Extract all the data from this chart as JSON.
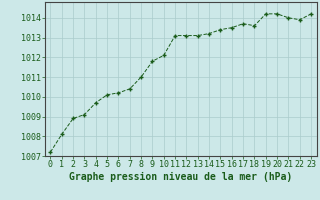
{
  "x": [
    0,
    1,
    2,
    3,
    4,
    5,
    6,
    7,
    8,
    9,
    10,
    11,
    12,
    13,
    14,
    15,
    16,
    17,
    18,
    19,
    20,
    21,
    22,
    23
  ],
  "y": [
    1007.2,
    1008.1,
    1008.9,
    1009.1,
    1009.7,
    1010.1,
    1010.2,
    1010.4,
    1011.0,
    1011.8,
    1012.1,
    1013.1,
    1013.1,
    1013.1,
    1013.2,
    1013.4,
    1013.5,
    1013.7,
    1013.6,
    1014.2,
    1014.2,
    1014.0,
    1013.9,
    1014.2
  ],
  "line_color": "#1a5c1a",
  "marker_color": "#1a5c1a",
  "bg_color": "#cce8e8",
  "grid_color": "#aacccc",
  "xlabel": "Graphe pression niveau de la mer (hPa)",
  "ylim_min": 1007,
  "ylim_max": 1014.8,
  "yticks": [
    1007,
    1008,
    1009,
    1010,
    1011,
    1012,
    1013,
    1014
  ],
  "xticks": [
    0,
    1,
    2,
    3,
    4,
    5,
    6,
    7,
    8,
    9,
    10,
    11,
    12,
    13,
    14,
    15,
    16,
    17,
    18,
    19,
    20,
    21,
    22,
    23
  ],
  "xlabel_fontsize": 7,
  "tick_fontsize": 6,
  "tick_color": "#1a5c1a",
  "axis_color": "#1a5c1a",
  "spine_color": "#444444"
}
